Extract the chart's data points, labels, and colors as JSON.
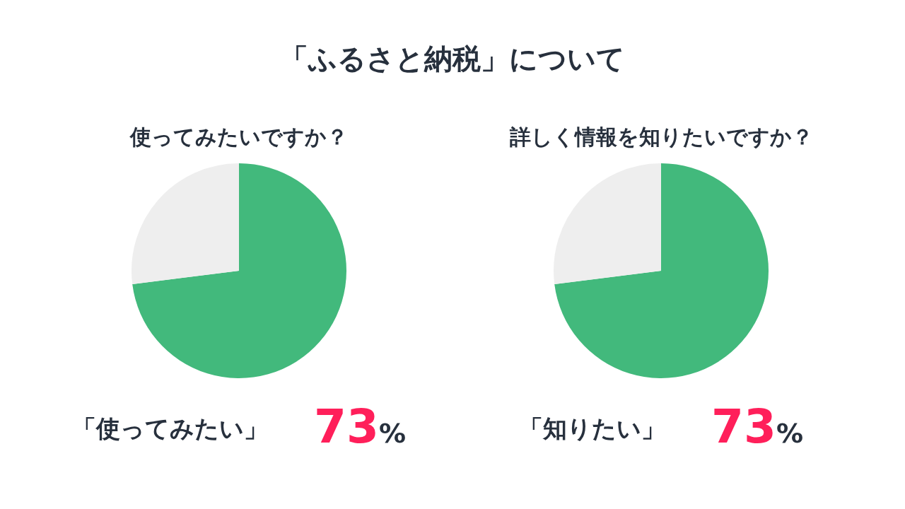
{
  "chart_data": [
    {
      "type": "pie",
      "title": "「ふるさと納税」について",
      "subtitle": "使ってみたいですか？",
      "categories": [
        "「使ってみたい」",
        null
      ],
      "values": [
        73,
        27
      ],
      "colors": [
        "#42b97c",
        "#eeeeee"
      ],
      "value_labels": [
        "73%",
        null
      ],
      "legend": false
    },
    {
      "type": "pie",
      "subtitle": "詳しく情報を知りたいですか？",
      "categories": [
        "「知りたい」",
        null
      ],
      "values": [
        73,
        27
      ],
      "colors": [
        "#42b97c",
        "#eeeeee"
      ],
      "value_labels": [
        "73%",
        null
      ],
      "legend": false
    }
  ]
}
